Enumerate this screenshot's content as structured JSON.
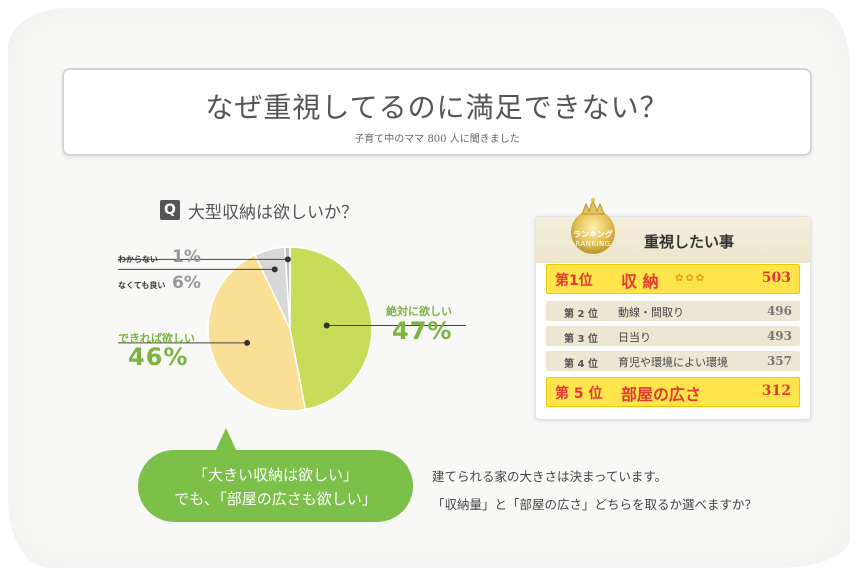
{
  "header": {
    "title": "なぜ重視してるのに満足できない？",
    "subtitle": "子育て中のママ 800 人に聞きました"
  },
  "question": {
    "badge": "Q",
    "text": "大型収納は欲しいか？"
  },
  "chart_data": {
    "type": "pie",
    "title": "大型収納は欲しいか？",
    "slices": [
      {
        "label": "絶対に欲しい",
        "value": 47,
        "display": "47%",
        "color": "#c8dc5a"
      },
      {
        "label": "できれば欲しい",
        "value": 46,
        "display": "46%",
        "color": "#fae096"
      },
      {
        "label": "なくても良い",
        "value": 6,
        "display": "6%",
        "color": "#d8d8d8"
      },
      {
        "label": "わからない",
        "value": 1,
        "display": "1%",
        "color": "#c0c0c0"
      }
    ]
  },
  "ranking": {
    "badge_line1": "ランキング",
    "badge_line2": "RANKING",
    "title": "重視したい事",
    "items": [
      {
        "position": "第1位",
        "item": "収 納",
        "value": "503"
      },
      {
        "position": "第 2 位",
        "item": "動線・間取り",
        "value": "496"
      },
      {
        "position": "第 3 位",
        "item": "日当り",
        "value": "493"
      },
      {
        "position": "第 4 位",
        "item": "育児や環境によい環境",
        "value": "357"
      },
      {
        "position": "第 5 位",
        "item": "部屋の広さ",
        "value": "312"
      }
    ],
    "stars": "✿✿✿"
  },
  "bubble": {
    "line1": "「大きい収納は欲しい」",
    "line2": "でも､「部屋の広さも欲しい」"
  },
  "body": {
    "line1": "建てられる家の大きさは決まっています。",
    "line2": "「収納量」と「部屋の広さ」どちらを取るか選べますか？"
  },
  "colors": {
    "accent_green": "#7cc04a",
    "rank_highlight": "#ffe44b",
    "rank_red": "#e53935"
  }
}
